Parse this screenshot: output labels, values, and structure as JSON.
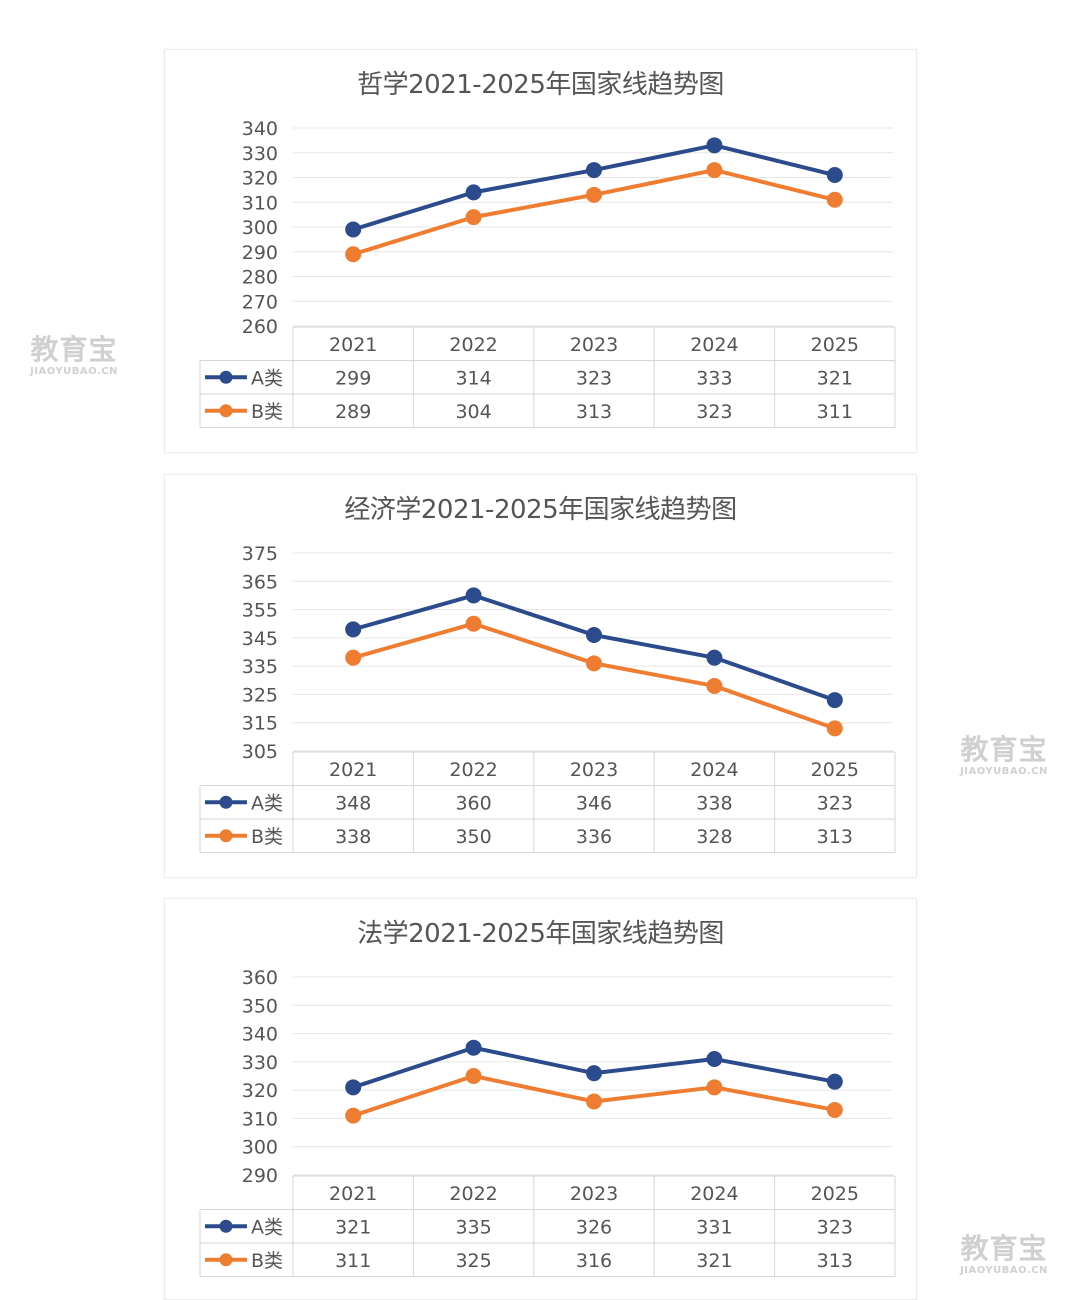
{
  "watermark": {
    "cn": "教育宝",
    "en": "JIAOYUBAO.CN"
  },
  "colors": {
    "series_a": "#2b4b8c",
    "series_b": "#ef7d31"
  },
  "chart_data": [
    {
      "type": "line",
      "title": "哲学2021-2025年国家线趋势图",
      "categories": [
        "2021",
        "2022",
        "2023",
        "2024",
        "2025"
      ],
      "yticks": [
        260,
        270,
        280,
        290,
        300,
        310,
        320,
        330,
        340
      ],
      "ylim": [
        260,
        340
      ],
      "grid": true,
      "legend": "data-table",
      "series": [
        {
          "name": "A类",
          "values": [
            299,
            314,
            323,
            333,
            321
          ]
        },
        {
          "name": "B类",
          "values": [
            289,
            304,
            313,
            323,
            311
          ]
        }
      ]
    },
    {
      "type": "line",
      "title": "经济学2021-2025年国家线趋势图",
      "categories": [
        "2021",
        "2022",
        "2023",
        "2024",
        "2025"
      ],
      "yticks": [
        305,
        315,
        325,
        335,
        345,
        355,
        365,
        375
      ],
      "ylim": [
        305,
        375
      ],
      "grid": true,
      "legend": "data-table",
      "series": [
        {
          "name": "A类",
          "values": [
            348,
            360,
            346,
            338,
            323
          ]
        },
        {
          "name": "B类",
          "values": [
            338,
            350,
            336,
            328,
            313
          ]
        }
      ]
    },
    {
      "type": "line",
      "title": "法学2021-2025年国家线趋势图",
      "categories": [
        "2021",
        "2022",
        "2023",
        "2024",
        "2025"
      ],
      "yticks": [
        290,
        300,
        310,
        320,
        330,
        340,
        350,
        360
      ],
      "ylim": [
        290,
        360
      ],
      "grid": true,
      "legend": "data-table",
      "series": [
        {
          "name": "A类",
          "values": [
            321,
            335,
            326,
            331,
            323
          ]
        },
        {
          "name": "B类",
          "values": [
            311,
            325,
            316,
            321,
            313
          ]
        }
      ]
    }
  ]
}
